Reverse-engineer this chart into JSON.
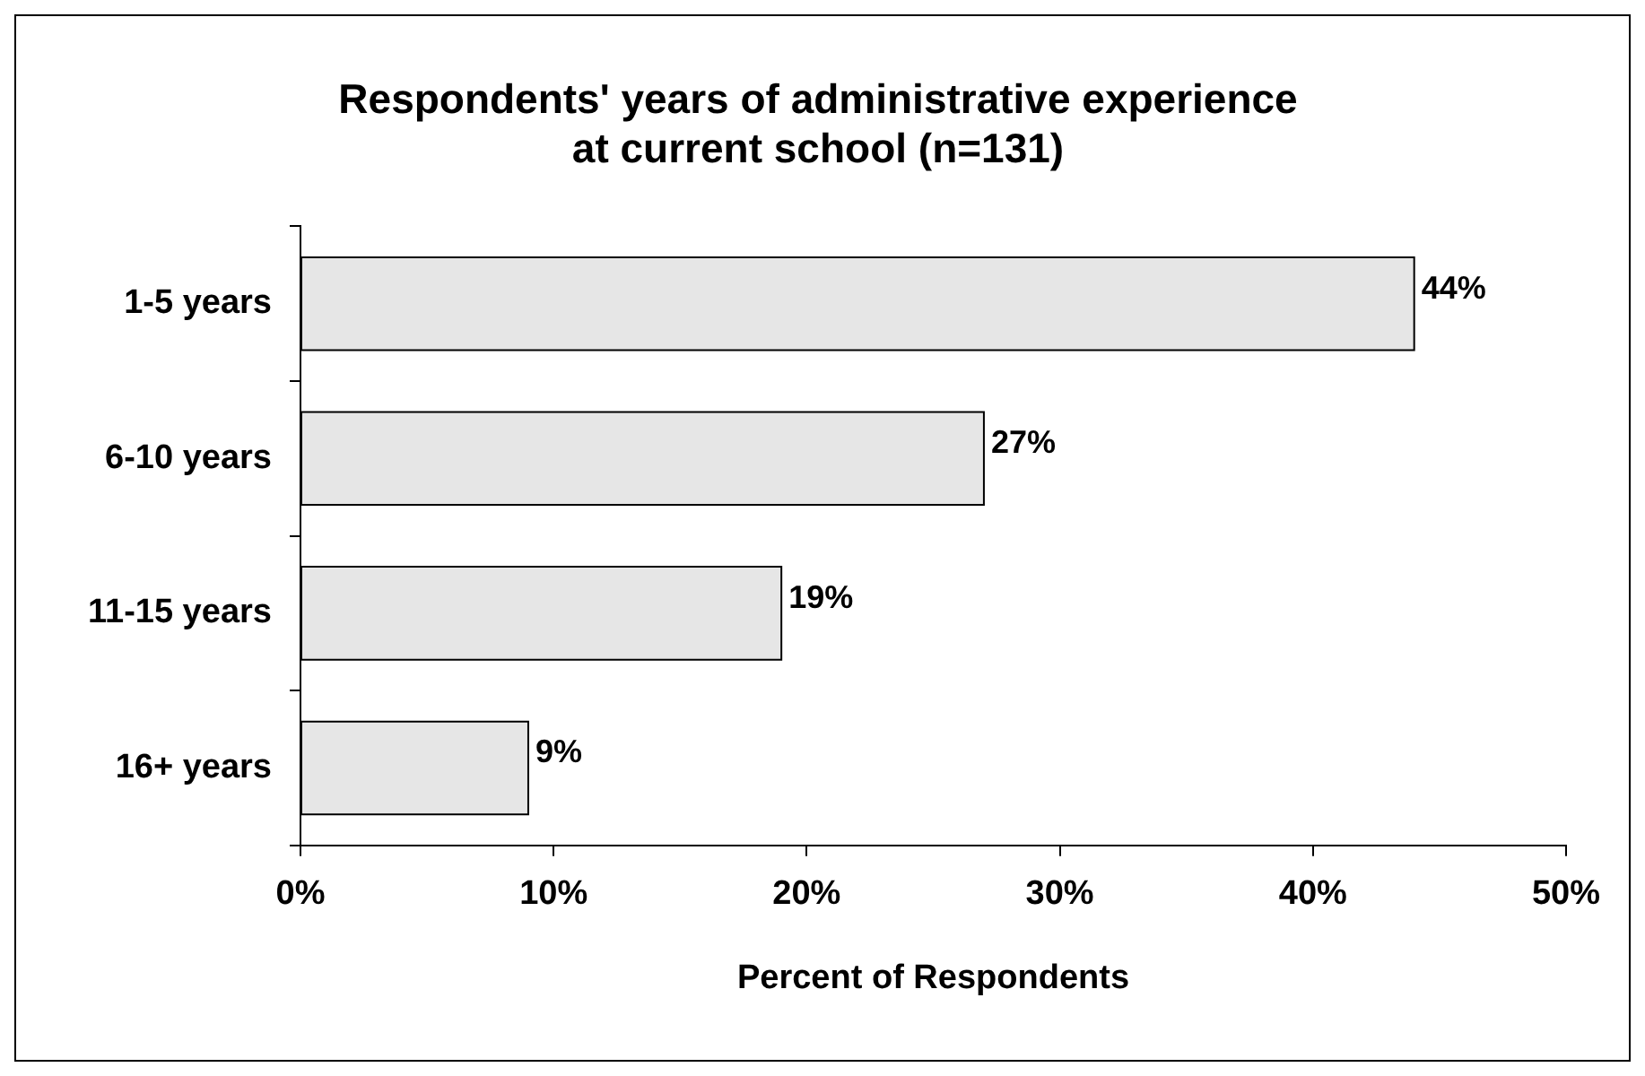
{
  "chart_data": {
    "type": "bar",
    "orientation": "horizontal",
    "title": "Respondents' years of administrative experience\nat current school (n=131)",
    "xlabel": "Percent of Respondents",
    "categories": [
      "1-5 years",
      "6-10 years",
      "11-15 years",
      "16+ years"
    ],
    "values": [
      44,
      27,
      19,
      9
    ],
    "value_labels": [
      "44%",
      "27%",
      "19%",
      "9%"
    ],
    "color": "#e6e6e6",
    "xlim": [
      0,
      50
    ],
    "xticks": [
      {
        "value": 0,
        "label": "0%"
      },
      {
        "value": 10,
        "label": "10%"
      },
      {
        "value": 20,
        "label": "20%"
      },
      {
        "value": 30,
        "label": "30%"
      },
      {
        "value": 40,
        "label": "40%"
      },
      {
        "value": 50,
        "label": "50%"
      }
    ],
    "grid": false,
    "legend": false
  }
}
